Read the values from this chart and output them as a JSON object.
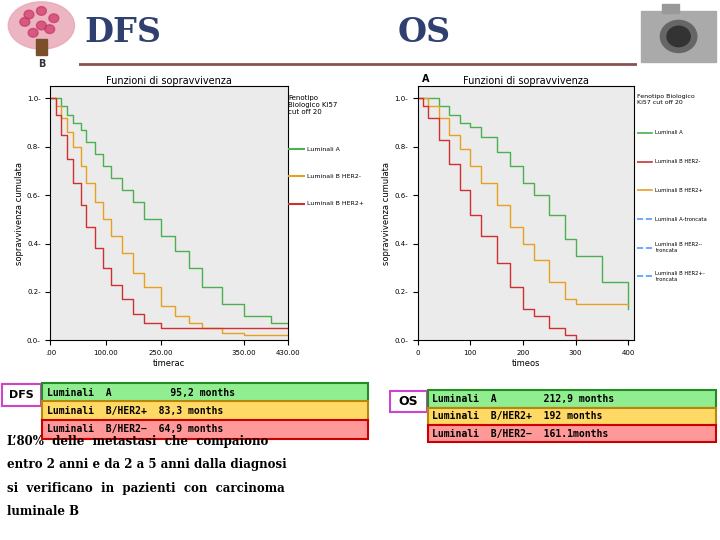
{
  "title_left": "DFS",
  "title_right": "OS",
  "title_color": "#2F4070",
  "separator_color": "#8B5050",
  "dfs_table": {
    "label": "DFS",
    "label_border": "#CC44CC",
    "rows": [
      {
        "text": "Luminali  A          95,2 months",
        "bg": "#90EE90",
        "border": "#228B22"
      },
      {
        "text": "Luminali  B/HER2+  83,3 months",
        "bg": "#FFD966",
        "border": "#B8860B"
      },
      {
        "text": "Luminali  B/HER2−  64,9 months",
        "bg": "#FF9999",
        "border": "#CC0000"
      }
    ]
  },
  "os_table": {
    "label": "OS",
    "label_border": "#CC44CC",
    "rows": [
      {
        "text": "Luminali  A        212,9 months",
        "bg": "#90EE90",
        "border": "#228B22"
      },
      {
        "text": "Luminali  B/HER2+  192 months",
        "bg": "#FFD966",
        "border": "#B8860B"
      },
      {
        "text": "Luminali  B/HER2−  161.1months",
        "bg": "#FF9999",
        "border": "#CC0000"
      }
    ]
  },
  "body_text_lines": [
    "L’80%  delle  metastasi  che  compaiono",
    "entro 2 anni e da 2 a 5 anni dalla diagnosi",
    "si  verificano  in  pazienti  con  carcinoma",
    "luminale B"
  ],
  "bg_color": "#FFFFFF",
  "chart_bg": "#EBEBEB",
  "dfs_km_t": [
    0,
    10,
    20,
    30,
    40,
    55,
    65,
    80,
    95,
    110,
    130,
    150,
    170,
    200,
    225,
    250,
    275,
    310,
    350,
    400,
    430
  ],
  "dfs_A": [
    1.0,
    1.0,
    0.97,
    0.93,
    0.9,
    0.87,
    0.82,
    0.77,
    0.72,
    0.67,
    0.62,
    0.57,
    0.5,
    0.43,
    0.37,
    0.3,
    0.22,
    0.15,
    0.1,
    0.07,
    0.07
  ],
  "dfs_Bpos": [
    1.0,
    0.97,
    0.92,
    0.86,
    0.8,
    0.72,
    0.65,
    0.57,
    0.5,
    0.43,
    0.36,
    0.28,
    0.22,
    0.14,
    0.1,
    0.07,
    0.05,
    0.03,
    0.02,
    0.02,
    0.02
  ],
  "dfs_Bneg": [
    1.0,
    0.93,
    0.85,
    0.75,
    0.65,
    0.56,
    0.47,
    0.38,
    0.3,
    0.23,
    0.17,
    0.11,
    0.07,
    0.05,
    0.05,
    0.05,
    0.05,
    0.05,
    0.05,
    0.05,
    0.05
  ],
  "os_km_t": [
    0,
    10,
    20,
    40,
    60,
    80,
    100,
    120,
    150,
    175,
    200,
    220,
    250,
    280,
    300,
    350,
    400
  ],
  "os_A": [
    1.0,
    1.0,
    1.0,
    0.97,
    0.93,
    0.9,
    0.88,
    0.84,
    0.78,
    0.72,
    0.65,
    0.6,
    0.52,
    0.42,
    0.35,
    0.24,
    0.13
  ],
  "os_Bpos": [
    1.0,
    1.0,
    0.97,
    0.92,
    0.85,
    0.79,
    0.72,
    0.65,
    0.56,
    0.47,
    0.4,
    0.33,
    0.24,
    0.17,
    0.15,
    0.15,
    0.15
  ],
  "os_Bneg": [
    1.0,
    0.97,
    0.92,
    0.83,
    0.73,
    0.62,
    0.52,
    0.43,
    0.32,
    0.22,
    0.13,
    0.1,
    0.05,
    0.02,
    0.0,
    0.0,
    0.0
  ],
  "color_A": "#4CAF50",
  "color_Bpos": "#E8A020",
  "color_Bneg": "#D03030"
}
